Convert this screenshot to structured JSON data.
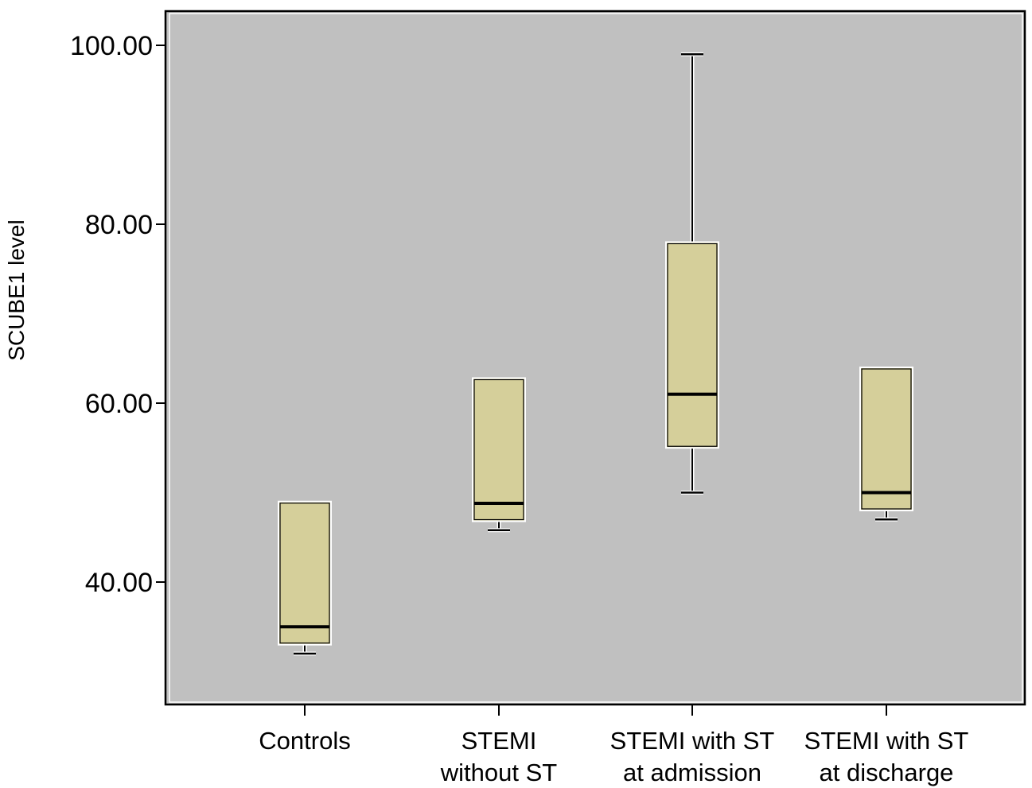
{
  "chart_data": {
    "type": "boxplot",
    "title": "",
    "xlabel": "",
    "ylabel": "SCUBE1 level",
    "ylim": [
      28,
      104
    ],
    "yticks": [
      "40.00",
      "60.00",
      "80.00",
      "100.00"
    ],
    "grid": false,
    "legend": "none",
    "colors": {
      "plot_background": "#c0c0c0",
      "box_fill": "#d5cf9a",
      "box_outline": "#ffffff",
      "median": "#000000",
      "whisker": "#000000"
    },
    "categories": [
      {
        "label_lines": [
          "Controls"
        ],
        "min": 32,
        "q1": 33,
        "median": 35,
        "q3": 49,
        "max": 49
      },
      {
        "label_lines": [
          "STEMI",
          "without ST"
        ],
        "min": 45.8,
        "q1": 46.8,
        "median": 48.8,
        "q3": 62.8,
        "max": 62.8
      },
      {
        "label_lines": [
          "STEMI with ST",
          "at admission"
        ],
        "min": 50,
        "q1": 55,
        "median": 61,
        "q3": 78,
        "max": 99
      },
      {
        "label_lines": [
          "STEMI with ST",
          "at discharge"
        ],
        "min": 47,
        "q1": 48,
        "median": 50,
        "q3": 64,
        "max": 64
      }
    ]
  }
}
